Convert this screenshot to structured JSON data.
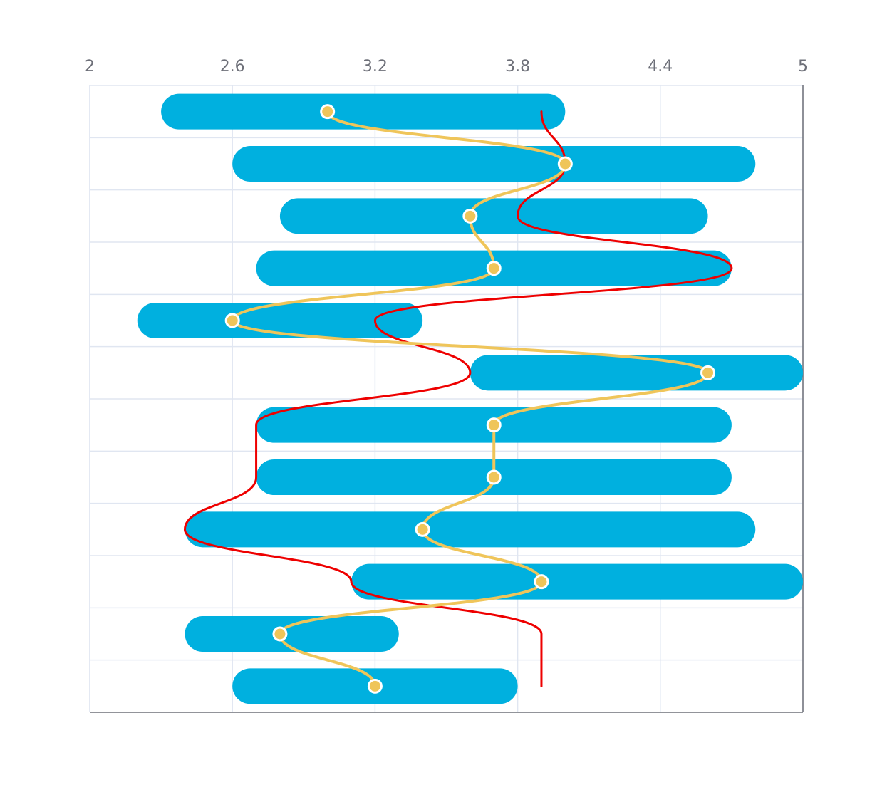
{
  "chart_data": {
    "type": "bar",
    "orientation": "horizontal",
    "title": "",
    "xlabel": "",
    "ylabel": "",
    "x_axis_position": "top",
    "xlim": [
      2,
      5
    ],
    "xticks": [
      "2",
      "2.6",
      "3.2",
      "3.8",
      "4.4",
      "5"
    ],
    "grid": true,
    "legend": "none",
    "rows": 12,
    "series": [
      {
        "type": "range-bar",
        "color": "#00b0df",
        "ranges": [
          [
            2.3,
            4.0
          ],
          [
            2.6,
            4.8
          ],
          [
            2.8,
            4.6
          ],
          [
            2.7,
            4.7
          ],
          [
            2.2,
            3.4
          ],
          [
            3.6,
            5.0
          ],
          [
            2.7,
            4.7
          ],
          [
            2.7,
            4.7
          ],
          [
            2.4,
            4.8
          ],
          [
            3.1,
            5.0
          ],
          [
            2.4,
            3.3
          ],
          [
            2.6,
            3.8
          ]
        ]
      },
      {
        "type": "line",
        "smooth": true,
        "color": "#efc55a",
        "markers": true,
        "values": [
          3.0,
          4.0,
          3.6,
          3.7,
          2.6,
          4.6,
          3.7,
          3.7,
          3.4,
          3.9,
          2.8,
          3.2
        ]
      },
      {
        "type": "line",
        "smooth": true,
        "color": "#ee0000",
        "markers": false,
        "values": [
          3.9,
          4.0,
          3.8,
          4.7,
          3.2,
          3.6,
          2.7,
          2.7,
          2.4,
          3.1,
          3.9,
          3.9
        ]
      }
    ]
  }
}
